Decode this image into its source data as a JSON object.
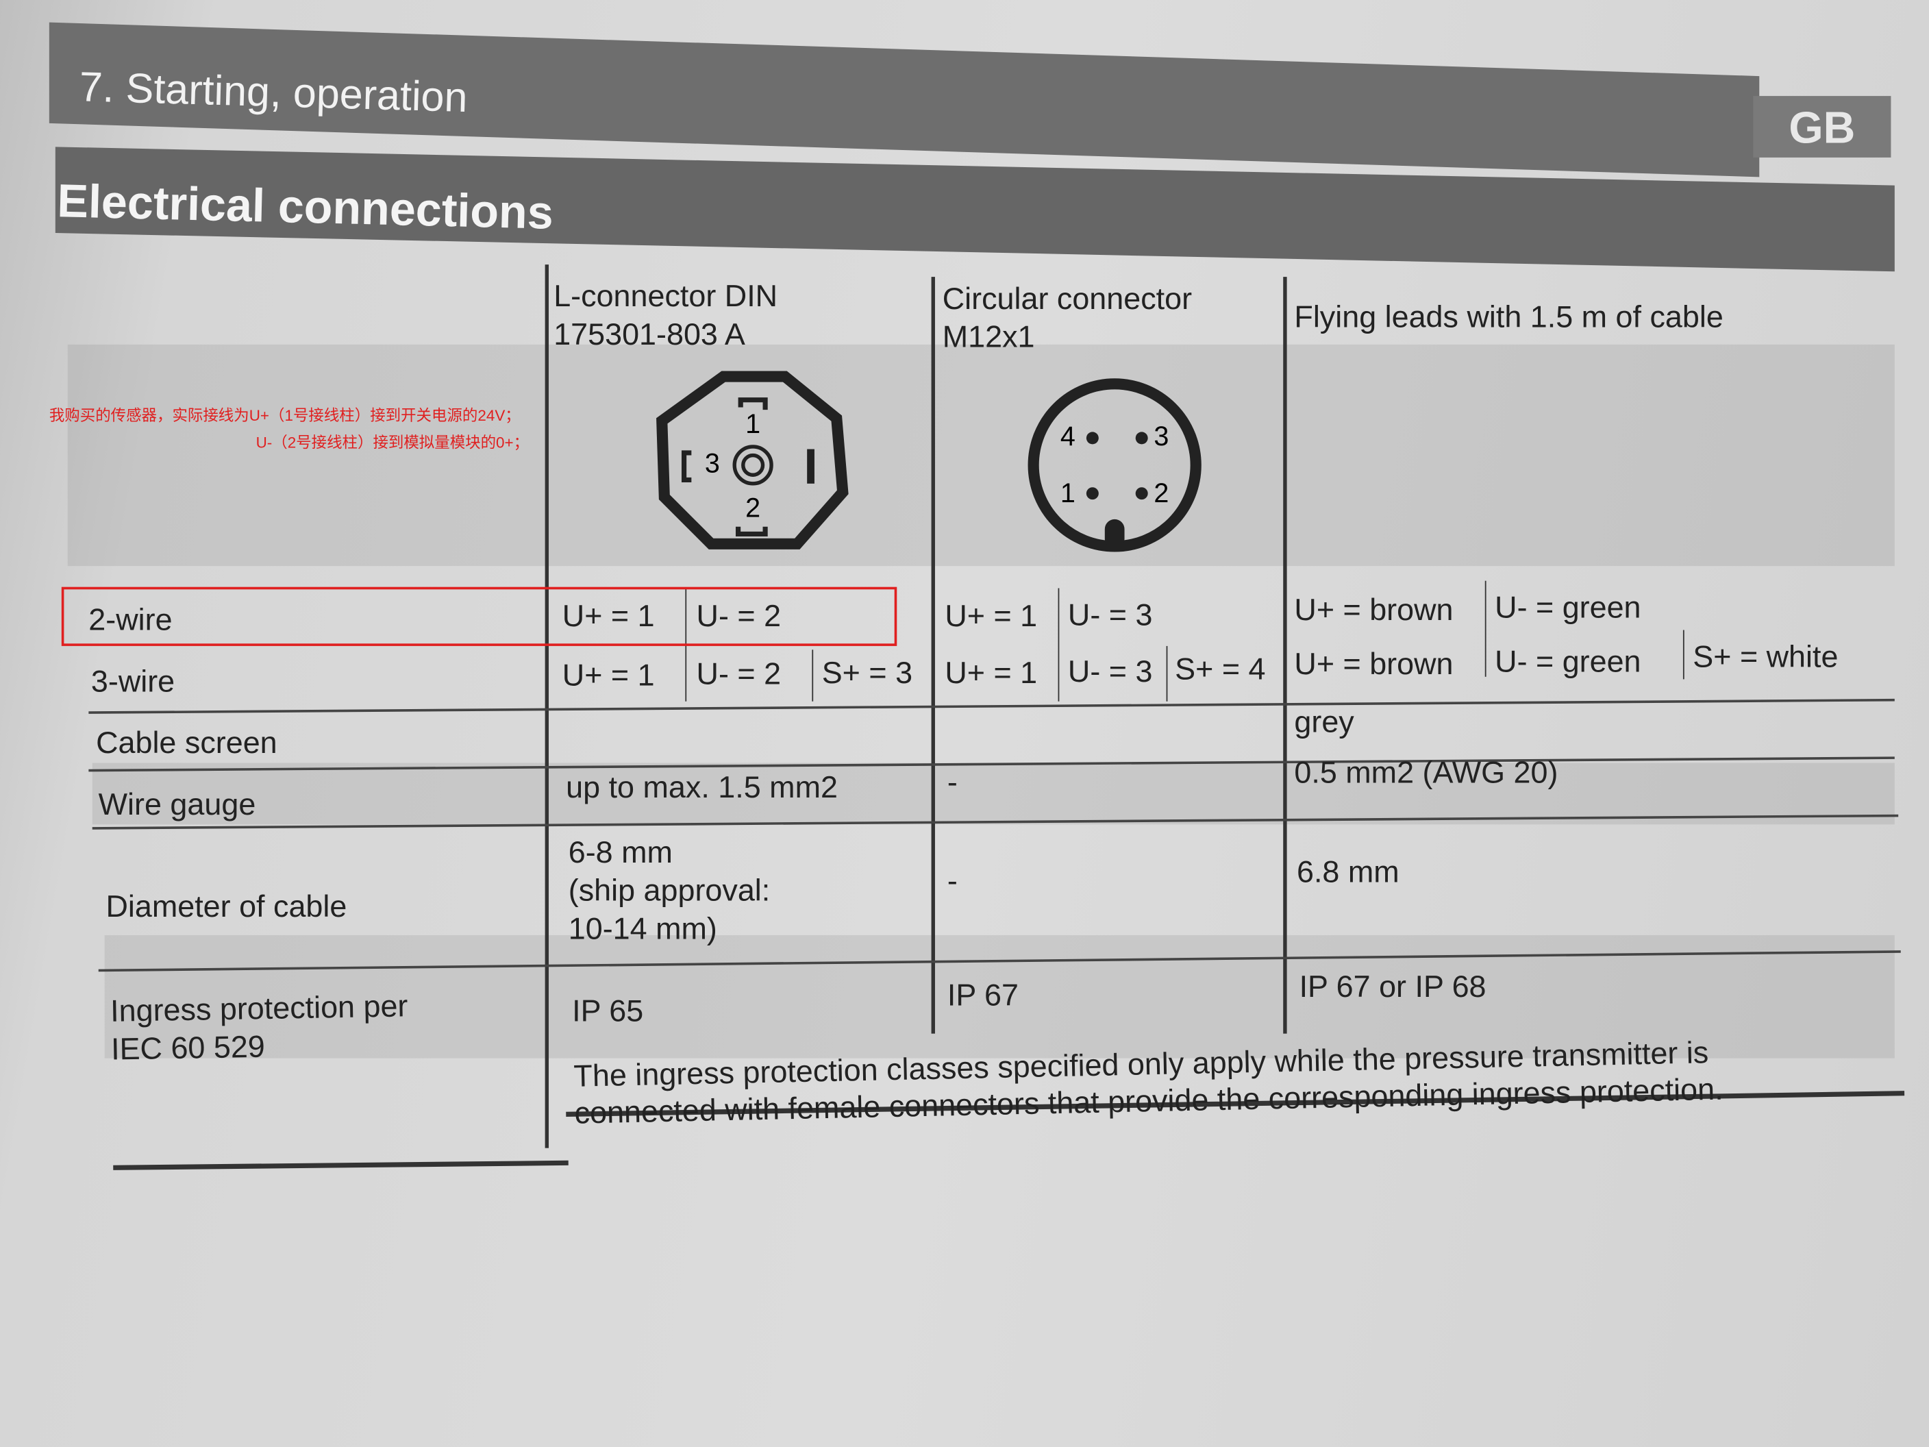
{
  "section": {
    "title": "7. Starting, operation",
    "lang_badge": "GB"
  },
  "subsection": {
    "title": "Electrical connections"
  },
  "annotation": {
    "line1": "我购买的传感器，实际接线为U+（1号接线柱）接到开关电源的24V；",
    "line2": "U-（2号接线柱）接到模拟量模块的0+；",
    "color": "#e02020"
  },
  "columns": [
    {
      "line1": "L-connector DIN",
      "line2": "175301-803 A"
    },
    {
      "line1": "Circular connector",
      "line2": "M12x1"
    },
    {
      "line1": "Flying leads with 1.5 m of cable"
    }
  ],
  "din_pins": [
    "1",
    "2",
    "3"
  ],
  "m12_pins": [
    "4",
    "3",
    "1",
    "2"
  ],
  "rows": {
    "two_wire": {
      "label": "2-wire",
      "din": [
        "U+ = 1",
        "U- = 2"
      ],
      "m12": [
        "U+ = 1",
        "U- = 3"
      ],
      "leads": [
        "U+ = brown",
        "U- = green"
      ]
    },
    "three_wire": {
      "label": "3-wire",
      "din": [
        "U+ = 1",
        "U- = 2",
        "S+ = 3"
      ],
      "m12": [
        "U+ = 1",
        "U- = 3",
        "S+ = 4"
      ],
      "leads": [
        "U+ = brown",
        "U- = green",
        "S+ = white"
      ]
    },
    "cable_screen": {
      "label": "Cable screen",
      "leads": "grey"
    },
    "wire_gauge": {
      "label": "Wire gauge",
      "din": "up to max. 1.5 mm2",
      "m12": "-",
      "leads": "0.5 mm2 (AWG 20)"
    },
    "diameter": {
      "label": "Diameter of cable",
      "din1": "6-8 mm",
      "din2": "(ship approval:",
      "din3": "10-14 mm)",
      "m12": "-",
      "leads": "6.8 mm"
    },
    "ingress": {
      "label1": "Ingress protection per",
      "label2": "IEC 60 529",
      "din": "IP 65",
      "m12": "IP 67",
      "leads": "IP 67 or IP 68"
    }
  },
  "note": {
    "line1": "The ingress protection classes specified only apply while the pressure transmitter is",
    "line2": "connected with female connectors that provide the corresponding ingress protection."
  }
}
